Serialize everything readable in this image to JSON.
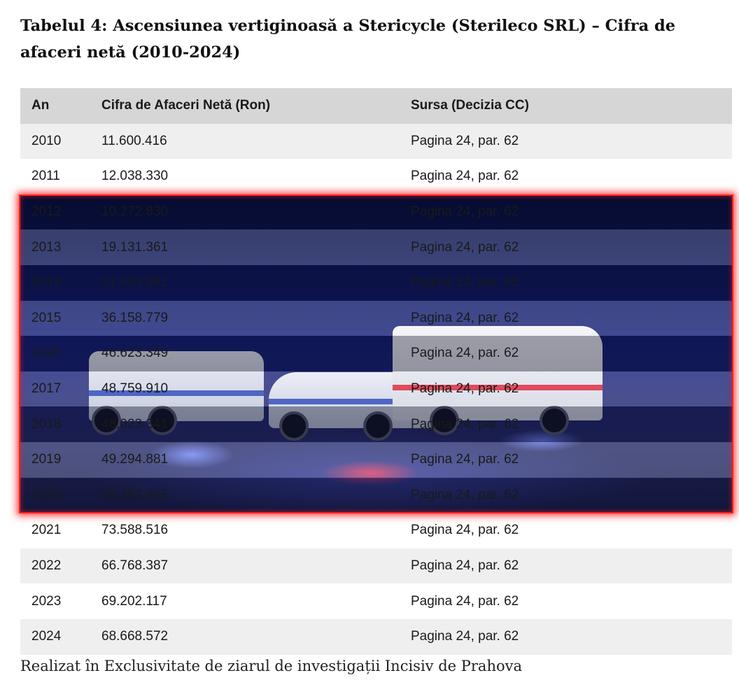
{
  "title": "Tabelul 4: Ascensiunea vertiginoasă a Stericycle (Sterileco SRL) – Cifra de afaceri netă (2010-2024)",
  "table": {
    "headers": [
      "An",
      "Cifra de Afaceri Netă (Ron)",
      "Sursa (Decizia CC)"
    ],
    "rows": [
      [
        "2010",
        "11.600.416",
        "Pagina 24, par. 62"
      ],
      [
        "2011",
        "12.038.330",
        "Pagina 24, par. 62"
      ],
      [
        "2012",
        "10.272.830",
        "Pagina 24, par. 62"
      ],
      [
        "2013",
        "19.131.361",
        "Pagina 24, par. 62"
      ],
      [
        "2014",
        "21.603.881",
        "Pagina 24, par. 62"
      ],
      [
        "2015",
        "36.158.779",
        "Pagina 24, par. 62"
      ],
      [
        "2016",
        "46.623.349",
        "Pagina 24, par. 62"
      ],
      [
        "2017",
        "48.759.910",
        "Pagina 24, par. 62"
      ],
      [
        "2018",
        "48.023.341",
        "Pagina 24, par. 62"
      ],
      [
        "2019",
        "49.294.881",
        "Pagina 24, par. 62"
      ],
      [
        "2020",
        "58.392.866",
        "Pagina 24, par. 62"
      ],
      [
        "2021",
        "73.588.516",
        "Pagina 24, par. 62"
      ],
      [
        "2022",
        "66.768.387",
        "Pagina 24, par. 62"
      ],
      [
        "2023",
        "69.202.117",
        "Pagina 24, par. 62"
      ],
      [
        "2024",
        "68.668.572",
        "Pagina 24, par. 62"
      ]
    ]
  },
  "overlay": {
    "description_colors": {
      "highlight_border": "#ff2020",
      "scene": "#17237a"
    }
  },
  "footer": "Realizat în Exclusivitate de ziarul de investigații Incisiv de Prahova"
}
